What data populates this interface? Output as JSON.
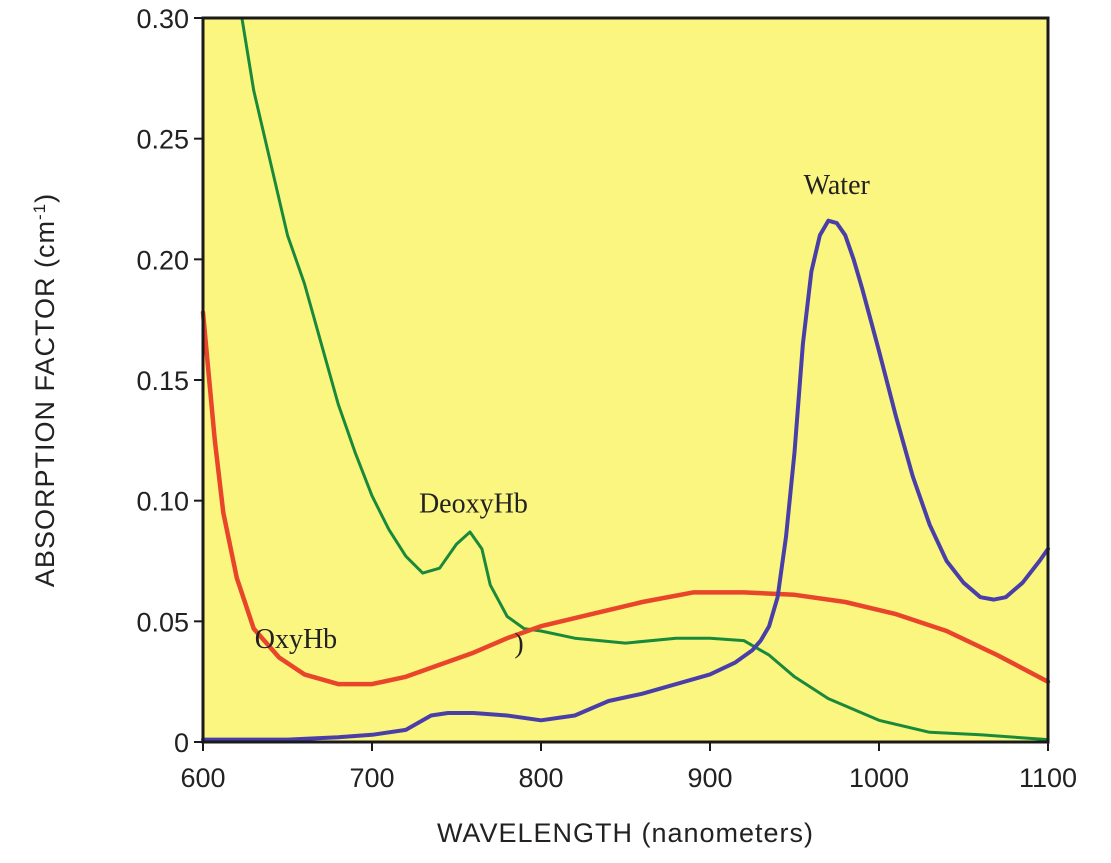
{
  "chart_data": {
    "type": "line",
    "xlabel": "WAVELENGTH (nanometers)",
    "ylabel_main": "ABSORPTION FACTOR (cm",
    "ylabel_sup": "-1",
    "ylabel_end": ")",
    "xlim": [
      600,
      1100
    ],
    "ylim": [
      0,
      0.3
    ],
    "x_ticks": [
      "600",
      "700",
      "800",
      "900",
      "1000",
      "1100"
    ],
    "y_ticks": [
      "0",
      "0.05",
      "0.10",
      "0.15",
      "0.20",
      "0.25",
      "0.30"
    ],
    "grid": false,
    "background_color": "#fbf680",
    "series": [
      {
        "name": "DeoxyHb",
        "color": "#1a8a3a",
        "x": [
          623,
          630,
          640,
          650,
          660,
          670,
          680,
          690,
          700,
          710,
          720,
          730,
          740,
          750,
          758,
          765,
          770,
          780,
          790,
          800,
          820,
          850,
          880,
          900,
          920,
          935,
          950,
          970,
          1000,
          1030,
          1060,
          1100
        ],
        "y": [
          0.3,
          0.27,
          0.24,
          0.21,
          0.19,
          0.165,
          0.14,
          0.12,
          0.102,
          0.088,
          0.077,
          0.07,
          0.072,
          0.082,
          0.087,
          0.08,
          0.065,
          0.052,
          0.047,
          0.046,
          0.043,
          0.041,
          0.043,
          0.043,
          0.042,
          0.036,
          0.027,
          0.018,
          0.009,
          0.004,
          0.003,
          0.001
        ]
      },
      {
        "name": "OxyHb",
        "color": "#e8452a",
        "x": [
          600,
          603,
          607,
          612,
          620,
          630,
          645,
          660,
          680,
          700,
          720,
          740,
          760,
          780,
          800,
          830,
          860,
          890,
          920,
          950,
          980,
          1010,
          1040,
          1070,
          1100
        ],
        "y": [
          0.178,
          0.155,
          0.125,
          0.095,
          0.068,
          0.047,
          0.035,
          0.028,
          0.024,
          0.024,
          0.027,
          0.032,
          0.037,
          0.043,
          0.048,
          0.053,
          0.058,
          0.062,
          0.062,
          0.061,
          0.058,
          0.053,
          0.046,
          0.036,
          0.025
        ]
      },
      {
        "name": "Water",
        "color": "#4a3fa8",
        "x": [
          600,
          650,
          680,
          700,
          720,
          735,
          745,
          760,
          780,
          800,
          820,
          840,
          860,
          880,
          900,
          915,
          925,
          930,
          935,
          940,
          945,
          950,
          955,
          960,
          965,
          970,
          975,
          980,
          985,
          990,
          995,
          1000,
          1010,
          1020,
          1030,
          1040,
          1050,
          1060,
          1068,
          1075,
          1085,
          1095,
          1100
        ],
        "y": [
          0.001,
          0.001,
          0.002,
          0.003,
          0.005,
          0.011,
          0.012,
          0.012,
          0.011,
          0.009,
          0.011,
          0.017,
          0.02,
          0.024,
          0.028,
          0.033,
          0.038,
          0.042,
          0.048,
          0.06,
          0.085,
          0.12,
          0.165,
          0.195,
          0.21,
          0.216,
          0.215,
          0.21,
          0.2,
          0.188,
          0.175,
          0.162,
          0.135,
          0.11,
          0.09,
          0.075,
          0.066,
          0.06,
          0.059,
          0.06,
          0.066,
          0.075,
          0.08
        ]
      }
    ],
    "labels": [
      {
        "text": "DeoxyHb",
        "series": "DeoxyHb",
        "x": 760,
        "y": 0.095
      },
      {
        "text": "OxyHb",
        "series": "OxyHb",
        "x": 655,
        "y": 0.039
      },
      {
        "text": "Water",
        "series": "Water",
        "x": 975,
        "y": 0.227
      },
      {
        "text": ")",
        "series": "",
        "x": 787,
        "y": 0.037
      }
    ]
  }
}
